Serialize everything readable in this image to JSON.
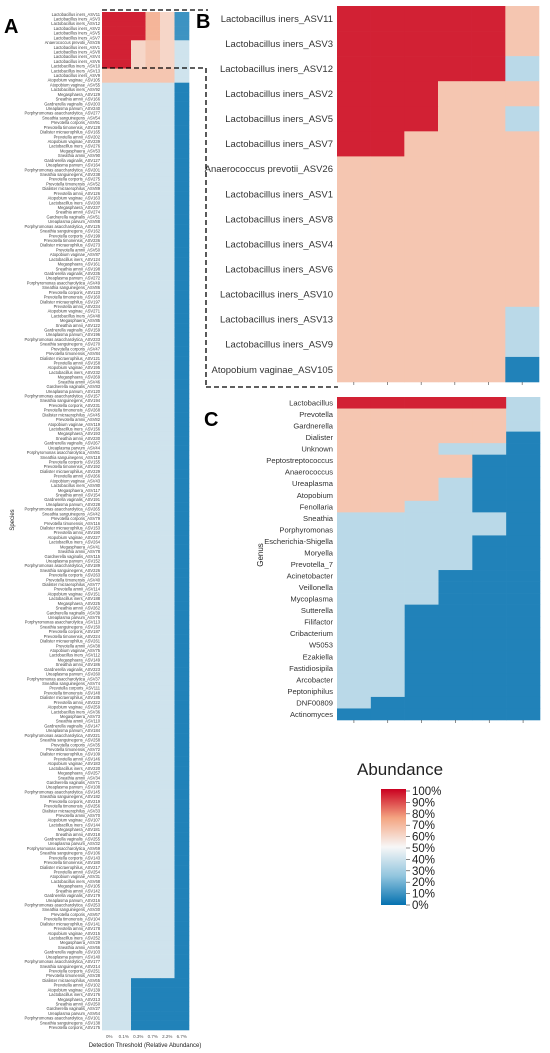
{
  "panels": {
    "A": {
      "letter": "A"
    },
    "B": {
      "letter": "B"
    },
    "C": {
      "letter": "C"
    }
  },
  "colors": {
    "scale_low": "#0571b0",
    "scale_mid": "#f7f7f7",
    "scale_high": "#ca0020",
    "dashed": "#000000"
  },
  "chart_data": [
    {
      "type": "heatmap",
      "panel": "A",
      "xlabel": "Detection Threshold (Relative Abundance)",
      "ylabel": "Species",
      "x_tick_labels": [
        "0%",
        "0.1%",
        "0.3%",
        "0.7%",
        "2.2%",
        "6.7%"
      ],
      "y_labels_top": [
        "Lactobacillus iners_ASV11",
        "Lactobacillus iners_ASV3",
        "Lactobacillus iners_ASV12",
        "Lactobacillus iners_ASV2",
        "Lactobacillus iners_ASV5",
        "Lactobacillus iners_ASV7",
        "Anaerococcus prevotii_ASV26",
        "Lactobacillus iners_ASV1",
        "Lactobacillus iners_ASV8",
        "Lactobacillus iners_ASV4",
        "Lactobacillus iners_ASV6",
        "Lactobacillus iners_ASV10",
        "Lactobacillus iners_ASV13",
        "Lactobacillus iners_ASV9",
        "Atopobium vaginae_ASV105"
      ],
      "y_label_cycle": [
        "Prevotella timonensis_ASV",
        "Gardnerella vaginalis_ASV",
        "Prevotella amnii_ASV",
        "Porphyromonas asaccharolytica_ASV",
        "Lactobacillus iners_ASV",
        "Prevotella corporis_ASV",
        "Sneathia amnii_ASV",
        "Dialister micraerophilus_ASV",
        "Ureaplasma parvum_ASV",
        "Atopobium vaginae_ASV",
        "Sneathia sanguinegens_ASV",
        "Megasphaera_ASV"
      ],
      "n_rows": 216,
      "value_levels_by_threshold": {
        "rows_1_to_6": [
          95,
          95,
          95,
          70,
          60,
          10
        ],
        "rows_7_to_12": [
          95,
          95,
          60,
          65,
          60,
          40
        ],
        "rows_13_to_15": [
          65,
          65,
          65,
          65,
          65,
          40
        ],
        "rows_16_to_205": [
          40,
          40,
          40,
          40,
          40,
          5
        ],
        "rows_206_to_216": [
          40,
          40,
          5,
          5,
          5,
          5
        ]
      }
    },
    {
      "type": "heatmap",
      "panel": "B",
      "xlabel": "",
      "ylabel": "",
      "y_labels": [
        "Lactobacillus iners_ASV11",
        "Lactobacillus iners_ASV3",
        "Lactobacillus iners_ASV12",
        "Lactobacillus iners_ASV2",
        "Lactobacillus iners_ASV5",
        "Lactobacillus iners_ASV7",
        "Anaerococcus prevotii_ASV26",
        "Lactobacillus iners_ASV1",
        "Lactobacillus iners_ASV8",
        "Lactobacillus iners_ASV4",
        "Lactobacillus iners_ASV6",
        "Lactobacillus iners_ASV10",
        "Lactobacillus iners_ASV13",
        "Lactobacillus iners_ASV9",
        "Atopobium vaginae_ASV105"
      ],
      "n_thresholds": 6,
      "values": [
        [
          95,
          95,
          95,
          95,
          95,
          65
        ],
        [
          95,
          95,
          95,
          95,
          95,
          65
        ],
        [
          95,
          95,
          95,
          95,
          95,
          35
        ],
        [
          95,
          95,
          95,
          65,
          65,
          65
        ],
        [
          95,
          95,
          95,
          65,
          65,
          35
        ],
        [
          95,
          95,
          65,
          65,
          65,
          65
        ],
        [
          65,
          65,
          65,
          65,
          65,
          65
        ],
        [
          65,
          65,
          65,
          65,
          65,
          65
        ],
        [
          65,
          65,
          65,
          65,
          65,
          65
        ],
        [
          65,
          65,
          65,
          65,
          65,
          65
        ],
        [
          65,
          65,
          65,
          65,
          65,
          65
        ],
        [
          65,
          65,
          65,
          65,
          65,
          65
        ],
        [
          65,
          65,
          65,
          65,
          65,
          35
        ],
        [
          65,
          65,
          65,
          65,
          65,
          35
        ],
        [
          65,
          65,
          65,
          65,
          65,
          5
        ]
      ]
    },
    {
      "type": "heatmap",
      "panel": "C",
      "xlabel": "",
      "ylabel": "Genus",
      "y_labels": [
        "Lactobacillus",
        "Prevotella",
        "Gardnerella",
        "Dialister",
        "Unknown",
        "Peptostreptococcus",
        "Anaerococcus",
        "Ureaplasma",
        "Atopobium",
        "Fenollaria",
        "Sneathia",
        "Porphyromonas",
        "Escherichia-Shigella",
        "Moryella",
        "Prevotella_7",
        "Acinetobacter",
        "Veillonella",
        "Mycoplasma",
        "Sutterella",
        "Filifactor",
        "Cribacterium",
        "W5053",
        "Ezakiella",
        "Fastidiosipila",
        "Arcobacter",
        "Peptoniphilus",
        "DNF00809",
        "Actinomyces"
      ],
      "n_thresholds": 6,
      "values": [
        [
          95,
          95,
          95,
          95,
          95,
          35
        ],
        [
          65,
          65,
          65,
          65,
          65,
          35
        ],
        [
          65,
          65,
          65,
          65,
          65,
          35
        ],
        [
          65,
          65,
          65,
          65,
          65,
          5
        ],
        [
          65,
          65,
          65,
          35,
          35,
          5
        ],
        [
          65,
          65,
          65,
          65,
          5,
          5
        ],
        [
          65,
          65,
          65,
          65,
          5,
          5
        ],
        [
          65,
          65,
          65,
          35,
          5,
          5
        ],
        [
          65,
          65,
          65,
          35,
          5,
          5
        ],
        [
          65,
          65,
          35,
          35,
          5,
          5
        ],
        [
          35,
          35,
          35,
          35,
          35,
          5
        ],
        [
          35,
          35,
          35,
          35,
          35,
          5
        ],
        [
          35,
          35,
          35,
          35,
          5,
          5
        ],
        [
          35,
          35,
          35,
          35,
          5,
          5
        ],
        [
          35,
          35,
          35,
          35,
          5,
          5
        ],
        [
          35,
          35,
          35,
          5,
          5,
          5
        ],
        [
          35,
          35,
          35,
          5,
          5,
          5
        ],
        [
          35,
          35,
          35,
          5,
          5,
          5
        ],
        [
          35,
          35,
          5,
          5,
          5,
          5
        ],
        [
          35,
          35,
          5,
          5,
          5,
          5
        ],
        [
          35,
          35,
          5,
          5,
          5,
          5
        ],
        [
          35,
          35,
          5,
          5,
          5,
          5
        ],
        [
          35,
          35,
          5,
          5,
          5,
          5
        ],
        [
          35,
          35,
          5,
          5,
          5,
          5
        ],
        [
          35,
          35,
          5,
          5,
          5,
          5
        ],
        [
          35,
          35,
          5,
          5,
          5,
          5
        ],
        [
          35,
          5,
          5,
          5,
          5,
          5
        ],
        [
          5,
          5,
          5,
          5,
          5,
          5
        ]
      ]
    }
  ],
  "legend": {
    "title": "Abundance",
    "labels": [
      "100%",
      "90%",
      "80%",
      "70%",
      "60%",
      "50%",
      "40%",
      "30%",
      "20%",
      "10%",
      "0%"
    ]
  }
}
